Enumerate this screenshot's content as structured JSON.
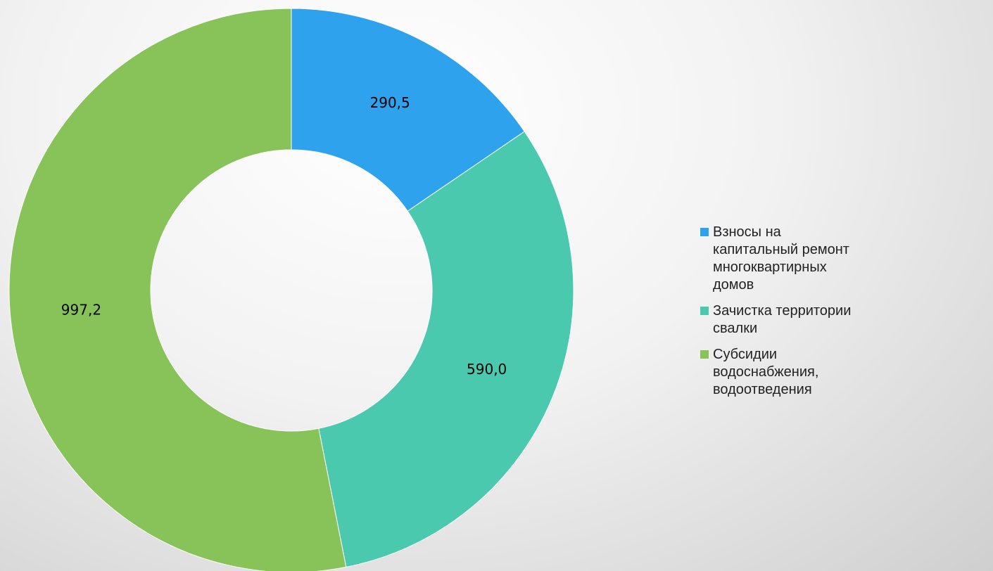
{
  "chart_data": {
    "type": "donut",
    "categories": [
      "Взносы на капитальный ремонт многоквартирных домов",
      "Зачистка территории свалки",
      "Субсидии водоснабжения, водоотведения"
    ],
    "values": [
      290.5,
      590.0,
      997.2
    ],
    "value_labels": [
      "290,5",
      "590,0",
      "997,2"
    ],
    "colors": [
      "#2fa2ee",
      "#4bc9af",
      "#88c35a"
    ],
    "legend": "right"
  }
}
